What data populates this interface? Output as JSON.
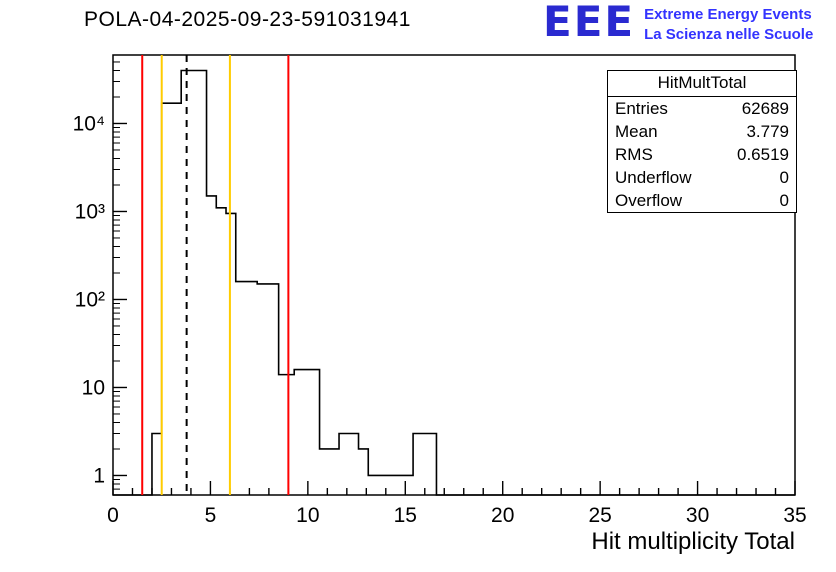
{
  "header": {
    "title": "POLA-04-2025-09-23-591031941"
  },
  "logo": {
    "acronym": "EEE",
    "line1": "Extreme Energy Events",
    "line2": "La Scienza nelle Scuole",
    "color_acronym": "#2a2ad0",
    "color_text": "#3333ff"
  },
  "stats_box": {
    "title": "HitMultTotal",
    "rows": [
      {
        "label": "Entries",
        "value": "62689"
      },
      {
        "label": "Mean",
        "value": "3.779"
      },
      {
        "label": "RMS",
        "value": "0.6519"
      },
      {
        "label": "Underflow",
        "value": "0"
      },
      {
        "label": "Overflow",
        "value": "0"
      }
    ]
  },
  "chart_data": {
    "type": "line",
    "subtype": "step-histogram",
    "title": "POLA-04-2025-09-23-591031941",
    "xlabel": "Hit multiplicity Total",
    "ylabel": "",
    "x_range": [
      0,
      35
    ],
    "y_range": [
      0.6,
      60000
    ],
    "y_scale": "log",
    "grid": false,
    "legend": false,
    "line_color": "#000000",
    "x_major_ticks": [
      0,
      5,
      10,
      15,
      20,
      25,
      30,
      35
    ],
    "x_tick_labels": [
      "0",
      "5",
      "10",
      "15",
      "20",
      "25",
      "30",
      "35"
    ],
    "y_major_ticks": [
      1,
      10,
      100,
      1000,
      10000
    ],
    "y_tick_labels": [
      "1",
      "10",
      "10²",
      "10³",
      "10⁴"
    ],
    "bins": [
      {
        "x0": 2.0,
        "x1": 2.5,
        "count": 3
      },
      {
        "x0": 2.5,
        "x1": 3.5,
        "count": 17000
      },
      {
        "x0": 3.5,
        "x1": 4.8,
        "count": 40000
      },
      {
        "x0": 4.8,
        "x1": 5.3,
        "count": 1500
      },
      {
        "x0": 5.3,
        "x1": 5.8,
        "count": 1100
      },
      {
        "x0": 5.8,
        "x1": 6.3,
        "count": 950
      },
      {
        "x0": 6.3,
        "x1": 7.4,
        "count": 160
      },
      {
        "x0": 7.4,
        "x1": 8.5,
        "count": 150
      },
      {
        "x0": 8.5,
        "x1": 9.3,
        "count": 14
      },
      {
        "x0": 9.3,
        "x1": 10.6,
        "count": 16
      },
      {
        "x0": 10.6,
        "x1": 11.6,
        "count": 2
      },
      {
        "x0": 11.6,
        "x1": 12.6,
        "count": 3
      },
      {
        "x0": 12.6,
        "x1": 13.1,
        "count": 2
      },
      {
        "x0": 13.1,
        "x1": 15.4,
        "count": 1
      },
      {
        "x0": 15.4,
        "x1": 16.6,
        "count": 3
      }
    ],
    "markers": [
      {
        "x": 1.5,
        "color": "#ff0000",
        "dash": false,
        "name": "red-threshold-low"
      },
      {
        "x": 2.5,
        "color": "#ffcc00",
        "dash": false,
        "name": "yellow-threshold-low"
      },
      {
        "x": 3.779,
        "color": "#000000",
        "dash": true,
        "name": "mean-dashed-line"
      },
      {
        "x": 6.0,
        "color": "#ffcc00",
        "dash": false,
        "name": "yellow-threshold-high"
      },
      {
        "x": 9.0,
        "color": "#ff0000",
        "dash": false,
        "name": "red-threshold-high"
      }
    ]
  }
}
